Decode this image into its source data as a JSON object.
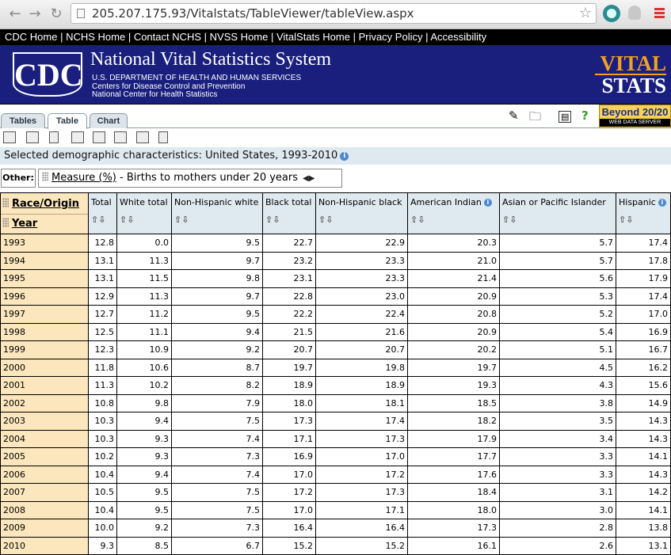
{
  "browser": {
    "url": "205.207.175.93/Vitalstats/TableViewer/tableView.aspx",
    "back_icon": "back-arrow-icon",
    "forward_icon": "forward-arrow-icon",
    "reload_icon": "reload-icon",
    "star_icon": "bookmark-star-icon",
    "menu_icon": "menu-icon"
  },
  "cdc_nav": {
    "links": [
      "CDC Home",
      "NCHS Home",
      "Contact NCHS",
      "NVSS Home",
      "VitalStats Home",
      "Privacy Policy",
      "Accessibility"
    ]
  },
  "banner": {
    "logo_text": "CDC",
    "title": "National Vital Statistics System",
    "line1": "U.S. DEPARTMENT OF HEALTH AND HUMAN SERVICES",
    "line2": "Centers for Disease Control and Prevention",
    "line3": "National Center for Health Statistics",
    "brand_top": "VITAL",
    "brand_bottom": "STATS",
    "accent_color": "#1a1f7e",
    "brand_color": "#f0a020"
  },
  "tabs": [
    {
      "label": "Tables",
      "active": false
    },
    {
      "label": "Table",
      "active": true
    },
    {
      "label": "Chart",
      "active": false
    }
  ],
  "beyond": {
    "title": "Beyond 20/20",
    "subtitle": "WEB DATA SERVER"
  },
  "selected": {
    "text": "Selected demographic characteristics: United States, 1993-2010"
  },
  "other": {
    "label": "Other:",
    "measure_link": "Measure (%)",
    "measure_value": " - Births to mothers under 20 years"
  },
  "table": {
    "row_dimension": "Race/Origin",
    "col_dimension": "Year",
    "sort_glyph": "⇧⇩",
    "columns": [
      {
        "label": "Total",
        "info": false
      },
      {
        "label": "White total",
        "info": false
      },
      {
        "label": "Non-Hispanic white",
        "info": false
      },
      {
        "label": "Black total",
        "info": false
      },
      {
        "label": "Non-Hispanic black",
        "info": false
      },
      {
        "label": "American Indian",
        "info": true
      },
      {
        "label": "Asian or Pacific Islander",
        "info": false
      },
      {
        "label": "Hispanic",
        "info": true
      }
    ],
    "rows": [
      {
        "year": "1993",
        "values": [
          "12.8",
          "0.0",
          "9.5",
          "22.7",
          "22.9",
          "20.3",
          "5.7",
          "17.4"
        ]
      },
      {
        "year": "1994",
        "values": [
          "13.1",
          "11.3",
          "9.7",
          "23.2",
          "23.3",
          "21.0",
          "5.7",
          "17.8"
        ]
      },
      {
        "year": "1995",
        "values": [
          "13.1",
          "11.5",
          "9.8",
          "23.1",
          "23.3",
          "21.4",
          "5.6",
          "17.9"
        ]
      },
      {
        "year": "1996",
        "values": [
          "12.9",
          "11.3",
          "9.7",
          "22.8",
          "23.0",
          "20.9",
          "5.3",
          "17.4"
        ]
      },
      {
        "year": "1997",
        "values": [
          "12.7",
          "11.2",
          "9.5",
          "22.2",
          "22.4",
          "20.8",
          "5.2",
          "17.0"
        ]
      },
      {
        "year": "1998",
        "values": [
          "12.5",
          "11.1",
          "9.4",
          "21.5",
          "21.6",
          "20.9",
          "5.4",
          "16.9"
        ]
      },
      {
        "year": "1999",
        "values": [
          "12.3",
          "10.9",
          "9.2",
          "20.7",
          "20.7",
          "20.2",
          "5.1",
          "16.7"
        ]
      },
      {
        "year": "2000",
        "values": [
          "11.8",
          "10.6",
          "8.7",
          "19.7",
          "19.8",
          "19.7",
          "4.5",
          "16.2"
        ]
      },
      {
        "year": "2001",
        "values": [
          "11.3",
          "10.2",
          "8.2",
          "18.9",
          "18.9",
          "19.3",
          "4.3",
          "15.6"
        ]
      },
      {
        "year": "2002",
        "values": [
          "10.8",
          "9.8",
          "7.9",
          "18.0",
          "18.1",
          "18.5",
          "3.8",
          "14.9"
        ]
      },
      {
        "year": "2003",
        "values": [
          "10.3",
          "9.4",
          "7.5",
          "17.3",
          "17.4",
          "18.2",
          "3.5",
          "14.3"
        ]
      },
      {
        "year": "2004",
        "values": [
          "10.3",
          "9.3",
          "7.4",
          "17.1",
          "17.3",
          "17.9",
          "3.4",
          "14.3"
        ]
      },
      {
        "year": "2005",
        "values": [
          "10.2",
          "9.3",
          "7.3",
          "16.9",
          "17.0",
          "17.7",
          "3.3",
          "14.1"
        ]
      },
      {
        "year": "2006",
        "values": [
          "10.4",
          "9.4",
          "7.4",
          "17.0",
          "17.2",
          "17.6",
          "3.3",
          "14.3"
        ]
      },
      {
        "year": "2007",
        "values": [
          "10.5",
          "9.5",
          "7.5",
          "17.2",
          "17.3",
          "18.4",
          "3.1",
          "14.2"
        ]
      },
      {
        "year": "2008",
        "values": [
          "10.4",
          "9.5",
          "7.5",
          "17.0",
          "17.1",
          "18.0",
          "3.0",
          "14.1"
        ]
      },
      {
        "year": "2009",
        "values": [
          "10.0",
          "9.2",
          "7.3",
          "16.4",
          "16.4",
          "17.3",
          "2.8",
          "13.8"
        ]
      },
      {
        "year": "2010",
        "values": [
          "9.3",
          "8.5",
          "6.7",
          "15.2",
          "15.2",
          "16.1",
          "2.6",
          "13.1"
        ]
      }
    ]
  }
}
